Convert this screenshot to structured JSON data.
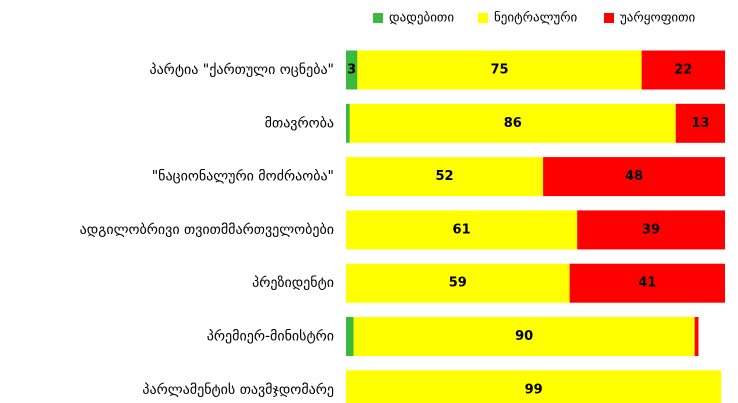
{
  "chart_data": {
    "type": "bar",
    "orientation": "horizontal",
    "stacked": true,
    "title": "",
    "xlabel": "",
    "ylabel": "",
    "xlim": [
      0,
      100
    ],
    "grid": false,
    "legend_position": "top-right",
    "categories": [
      "პარტია \"ქართული ოცნება\"",
      "მთავრობა",
      "\"ნაციონალური მოძრაობა\"",
      "ადგილობრივი თვითმმართველობები",
      "პრეზიდენტი",
      "პრემიერ-მინისტრი",
      "პარლამენტის თავმჯდომარე"
    ],
    "series": [
      {
        "name": "დადებითი",
        "color": "#3cb93c",
        "values": [
          3,
          1,
          0,
          0,
          0,
          2,
          0
        ],
        "labels": [
          "3",
          "",
          "",
          "",
          "",
          "",
          ""
        ]
      },
      {
        "name": "ნეიტრალური",
        "color": "#ffff00",
        "values": [
          75,
          86,
          52,
          61,
          59,
          90,
          99
        ],
        "labels": [
          "75",
          "86",
          "52",
          "61",
          "59",
          "90",
          "99"
        ]
      },
      {
        "name": "უარყოფითი",
        "color": "#ff0000",
        "values": [
          22,
          13,
          48,
          39,
          41,
          1,
          0
        ],
        "labels": [
          "22",
          "13",
          "48",
          "39",
          "41",
          "",
          ""
        ]
      }
    ]
  }
}
